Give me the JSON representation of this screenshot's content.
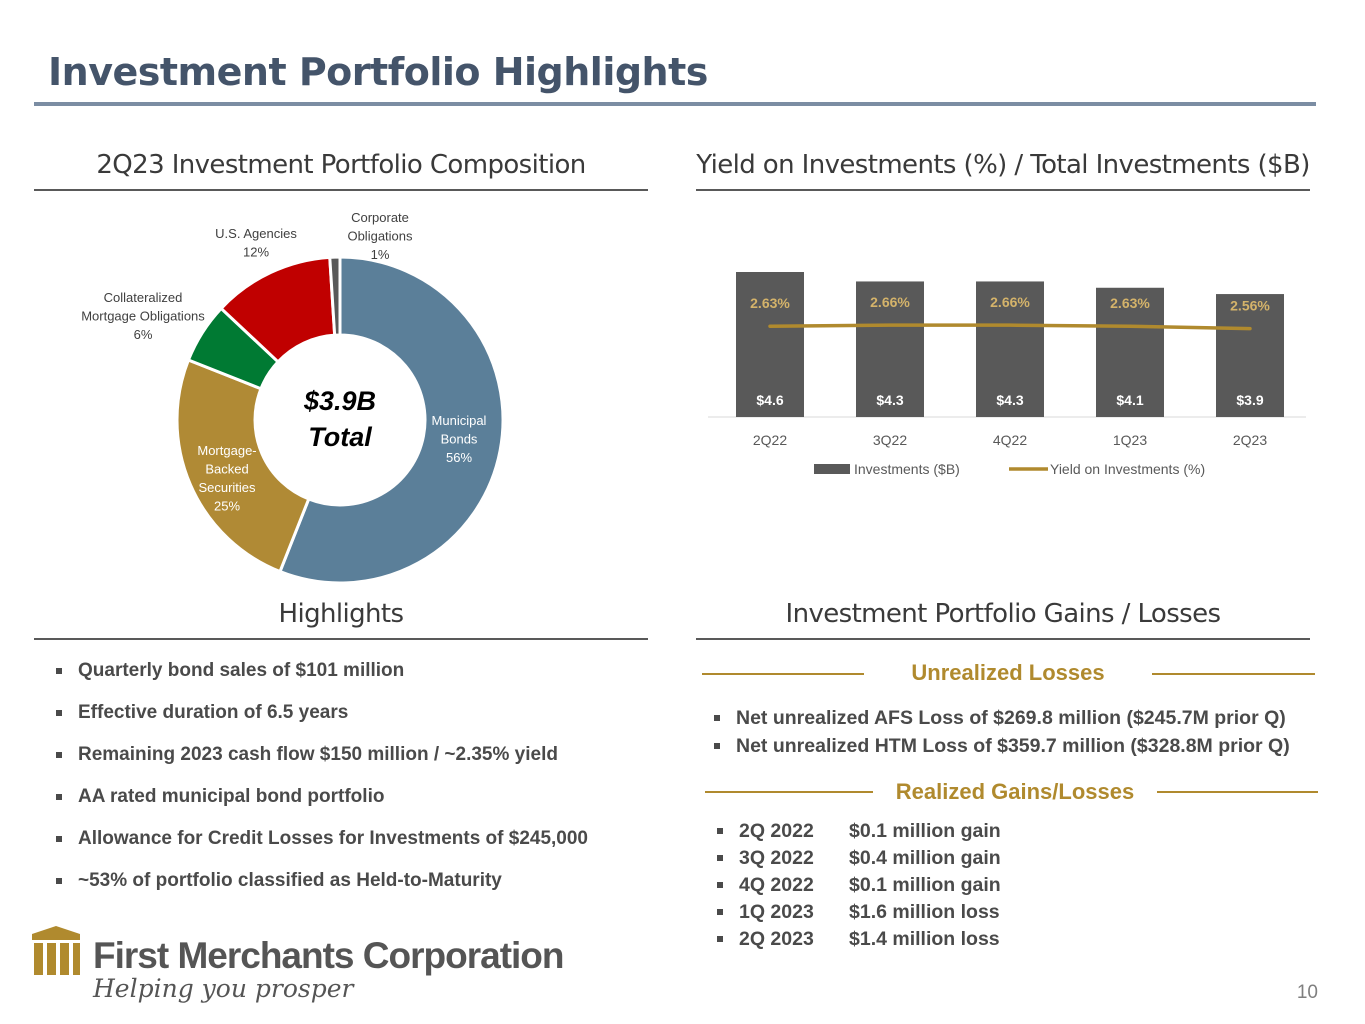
{
  "title": "Investment Portfolio Highlights",
  "sections": {
    "composition": "2Q23 Investment Portfolio Composition",
    "yield": "Yield on Investments (%) / Total Investments ($B)",
    "highlights": "Highlights",
    "gains": "Investment Portfolio Gains / Losses"
  },
  "colors": {
    "title": "#44546a",
    "gold": "#b08a2e",
    "bar": "#595959",
    "municipal": "#5b7f99",
    "mbs": "#b08a35",
    "cmo": "#007a33",
    "agencies": "#c00000",
    "corporate": "#595959"
  },
  "chart_data": [
    {
      "type": "pie",
      "variant": "donut",
      "title": "2Q23 Investment Portfolio Composition",
      "center_label": [
        "$3.9B",
        "Total"
      ],
      "slices": [
        {
          "name": "Municipal Bonds",
          "label_lines": [
            "Municipal",
            "Bonds",
            "56%"
          ],
          "value": 56,
          "color": "#5b7f99"
        },
        {
          "name": "Mortgage-Backed Securities",
          "label_lines": [
            "Mortgage-",
            "Backed",
            "Securities",
            "25%"
          ],
          "value": 25,
          "color": "#b08a35"
        },
        {
          "name": "Collateralized Mortgage Obligations",
          "label_lines": [
            "Collateralized",
            "Mortgage Obligations",
            "6%"
          ],
          "value": 6,
          "color": "#007a33"
        },
        {
          "name": "U.S. Agencies",
          "label_lines": [
            "U.S. Agencies",
            "12%"
          ],
          "value": 12,
          "color": "#c00000"
        },
        {
          "name": "Corporate Obligations",
          "label_lines": [
            "Corporate",
            "Obligations",
            "1%"
          ],
          "value": 1,
          "color": "#595959"
        }
      ]
    },
    {
      "type": "bar",
      "title": "Yield on Investments (%) / Total Investments ($B)",
      "categories": [
        "2Q22",
        "3Q22",
        "4Q22",
        "1Q23",
        "2Q23"
      ],
      "series": [
        {
          "name": "Investments ($B)",
          "kind": "bar",
          "values": [
            4.6,
            4.3,
            4.3,
            4.1,
            3.9
          ],
          "labels": [
            "$4.6",
            "$4.3",
            "$4.3",
            "$4.1",
            "$3.9"
          ]
        },
        {
          "name": "Yield on Investments (%)",
          "kind": "line",
          "values": [
            2.63,
            2.66,
            2.66,
            2.63,
            2.56
          ],
          "labels": [
            "2.63%",
            "2.66%",
            "2.66%",
            "2.63%",
            "2.56%"
          ]
        }
      ],
      "legend": [
        "Investments ($B)",
        "Yield on Investments (%)"
      ],
      "legend_position": "bottom",
      "ylim_bar": [
        0,
        4.6
      ],
      "ylim_line": [
        0,
        4.2
      ]
    }
  ],
  "highlights": [
    "Quarterly bond sales of $101 million",
    "Effective duration of 6.5 years",
    "Remaining 2023 cash flow $150 million / ~2.35% yield",
    "AA rated municipal bond portfolio",
    "Allowance for Credit Losses for Investments of $245,000",
    "~53% of portfolio classified as Held-to-Maturity"
  ],
  "unrealized": {
    "heading": "Unrealized Losses",
    "items": [
      "Net unrealized AFS Loss of $269.8 million ($245.7M prior Q)",
      "Net unrealized HTM Loss of $359.7 million ($328.8M prior Q)"
    ]
  },
  "realized": {
    "heading": "Realized Gains/Losses",
    "items": [
      {
        "period": "2Q 2022",
        "value": "$0.1 million gain"
      },
      {
        "period": "3Q 2022",
        "value": "$0.4 million gain"
      },
      {
        "period": "4Q 2022",
        "value": "$0.1 million gain"
      },
      {
        "period": "1Q 2023",
        "value": "$1.6 million loss"
      },
      {
        "period": "2Q 2023",
        "value": "$1.4 million loss"
      }
    ]
  },
  "logo": {
    "name": "First Merchants Corporation",
    "tagline": "Helping you prosper"
  },
  "page_number": "10"
}
